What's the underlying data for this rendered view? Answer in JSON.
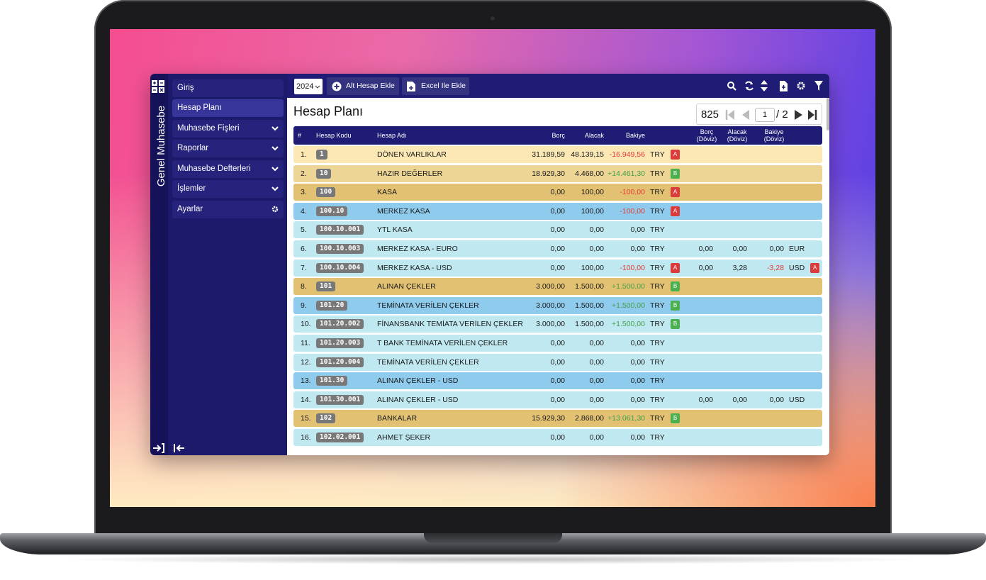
{
  "sidebar": {
    "title": "Genel Muhasebe",
    "menu": [
      "Giriş",
      "Hesap Planı",
      "Muhasebe Fişleri",
      "Raporlar",
      "Muhasebe Defterleri",
      "İşlemler",
      "Ayarlar"
    ]
  },
  "toolbar": {
    "year": "2024",
    "buttons": [
      "Alt Hesap Ekle",
      "Excel Ile Ekle"
    ]
  },
  "page": {
    "title": "Hesap Planı"
  },
  "pagination": {
    "total": 825,
    "page": 1,
    "pages": "/ 2"
  },
  "table": {
    "columns": [
      "#",
      "Hesap Kodu",
      "Hesap Adı",
      "Borç",
      "Alacak",
      "Bakiye",
      "Borç (Döviz)",
      "Alacak (Döviz)",
      "Bakiye (Döviz)"
    ],
    "rows": [
      {
        "no": "1.",
        "code": "1",
        "name": "DÖNEN VARLIKLAR",
        "borc": "31.189,59",
        "alacak": "48.139,15",
        "bakiye": "-16.949,56",
        "cur": "TRY",
        "flag": "A"
      },
      {
        "no": "2.",
        "code": "10",
        "name": "HAZIR DEĞERLER",
        "borc": "18.929,30",
        "alacak": "4.468,00",
        "bakiye": "+14.461,30",
        "cur": "TRY",
        "flag": "B"
      },
      {
        "no": "3.",
        "code": "100",
        "name": "KASA",
        "borc": "0,00",
        "alacak": "100,00",
        "bakiye": "-100,00",
        "cur": "TRY",
        "flag": "A"
      },
      {
        "no": "4.",
        "code": "100.10",
        "name": "MERKEZ KASA",
        "borc": "0,00",
        "alacak": "100,00",
        "bakiye": "-100,00",
        "cur": "TRY",
        "flag": "A"
      },
      {
        "no": "5.",
        "code": "100.10.001",
        "name": "YTL KASA",
        "borc": "0,00",
        "alacak": "0,00",
        "bakiye": "0,00",
        "cur": "TRY"
      },
      {
        "no": "6.",
        "code": "100.10.003",
        "name": "MERKEZ KASA - EURO",
        "borc": "0,00",
        "alacak": "0,00",
        "bakiye": "0,00",
        "cur": "TRY",
        "dBorc": "0,00",
        "dAlacak": "0,00",
        "dBakiye": "0,00",
        "dCur": "EUR"
      },
      {
        "no": "7.",
        "code": "100.10.004",
        "name": "MERKEZ KASA - USD",
        "borc": "0,00",
        "alacak": "100,00",
        "bakiye": "-100,00",
        "cur": "TRY",
        "flag": "A",
        "dBorc": "0,00",
        "dAlacak": "3,28",
        "dBakiye": "-3,28",
        "dCur": "USD",
        "dFlag": "A"
      },
      {
        "no": "8.",
        "code": "101",
        "name": "ALINAN ÇEKLER",
        "borc": "3.000,00",
        "alacak": "1.500,00",
        "bakiye": "+1.500,00",
        "cur": "TRY",
        "flag": "B"
      },
      {
        "no": "9.",
        "code": "101.20",
        "name": "TEMİNATA VERİLEN ÇEKLER",
        "borc": "3.000,00",
        "alacak": "1.500,00",
        "bakiye": "+1.500,00",
        "cur": "TRY",
        "flag": "B"
      },
      {
        "no": "10.",
        "code": "101.20.002",
        "name": "FİNANSBANK TEMİATA VERİLEN ÇEKLER",
        "borc": "3.000,00",
        "alacak": "1.500,00",
        "bakiye": "+1.500,00",
        "cur": "TRY",
        "flag": "B"
      },
      {
        "no": "11.",
        "code": "101.20.003",
        "name": "T BANK TEMİNATA VERİLEN ÇEKLER",
        "borc": "0,00",
        "alacak": "0,00",
        "bakiye": "0,00",
        "cur": "TRY"
      },
      {
        "no": "12.",
        "code": "101.20.004",
        "name": "TEMİNATA VERİLEN ÇEKLER",
        "borc": "0,00",
        "alacak": "0,00",
        "bakiye": "0,00",
        "cur": "TRY"
      },
      {
        "no": "13.",
        "code": "101.30",
        "name": "ALINAN ÇEKLER - USD",
        "borc": "0,00",
        "alacak": "0,00",
        "bakiye": "0,00",
        "cur": "TRY"
      },
      {
        "no": "14.",
        "code": "101.30.001",
        "name": "ALINAN ÇEKLER - USD",
        "borc": "0,00",
        "alacak": "0,00",
        "bakiye": "0,00",
        "cur": "TRY",
        "dBorc": "0,00",
        "dAlacak": "0,00",
        "dBakiye": "0,00",
        "dCur": "USD"
      },
      {
        "no": "15.",
        "code": "102",
        "name": "BANKALAR",
        "borc": "15.929,30",
        "alacak": "2.868,00",
        "bakiye": "+13.061,30",
        "cur": "TRY",
        "flag": "B"
      },
      {
        "no": "16.",
        "code": "102.02.001",
        "name": "AHMET ŞEKER",
        "borc": "0,00",
        "alacak": "0,00",
        "bakiye": "0,00",
        "cur": "TRY"
      }
    ]
  }
}
